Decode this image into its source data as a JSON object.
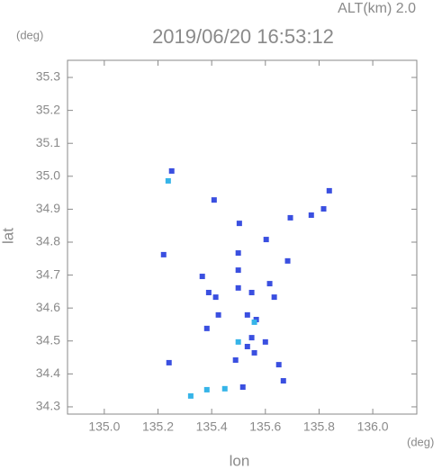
{
  "chart_data": {
    "type": "scatter",
    "title": "2019/06/20 16:53:12",
    "subtitle": "ALT(km) 2.0",
    "x_label": "lon",
    "y_label": "lat",
    "x_unit": "(deg)",
    "y_unit": "(deg)",
    "xlim": [
      134.863,
      136.164
    ],
    "ylim": [
      34.278,
      35.352
    ],
    "xticks": [
      {
        "value": 135,
        "label": "135.0"
      },
      135.2,
      135.4,
      135.6,
      135.8,
      {
        "value": 136,
        "label": "136.0"
      }
    ],
    "yticks": [
      35.3,
      35.2,
      35.1,
      {
        "value": 35,
        "label": "35.0"
      },
      34.9,
      34.8,
      34.7,
      34.6,
      34.5,
      34.4,
      34.3
    ],
    "series": [
      {
        "color": "#3a4fe0",
        "x": [
          135.251,
          135.409,
          135.221,
          135.503,
          135.499,
          135.603,
          135.693,
          135.771,
          135.838,
          135.817,
          135.683,
          135.499,
          135.549,
          135.616,
          135.633,
          135.533,
          135.566,
          135.549,
          135.533,
          135.6,
          135.415,
          135.389,
          135.425,
          135.382,
          135.499,
          135.365,
          135.489,
          135.559,
          135.65,
          135.667,
          135.241,
          135.516
        ],
        "y": [
          35.016,
          34.928,
          34.762,
          34.857,
          34.767,
          34.808,
          34.874,
          34.882,
          34.956,
          34.901,
          34.743,
          34.661,
          34.647,
          34.674,
          34.633,
          34.579,
          34.565,
          34.51,
          34.483,
          34.497,
          34.633,
          34.647,
          34.579,
          34.538,
          34.715,
          34.696,
          34.442,
          34.464,
          34.428,
          34.379,
          34.434,
          34.36
        ]
      },
      {
        "color": "#36b4e8",
        "x": [
          135.238,
          135.499,
          135.559,
          135.322,
          135.382,
          135.449
        ],
        "y": [
          34.986,
          34.497,
          34.557,
          34.333,
          34.352,
          34.355
        ]
      }
    ]
  }
}
